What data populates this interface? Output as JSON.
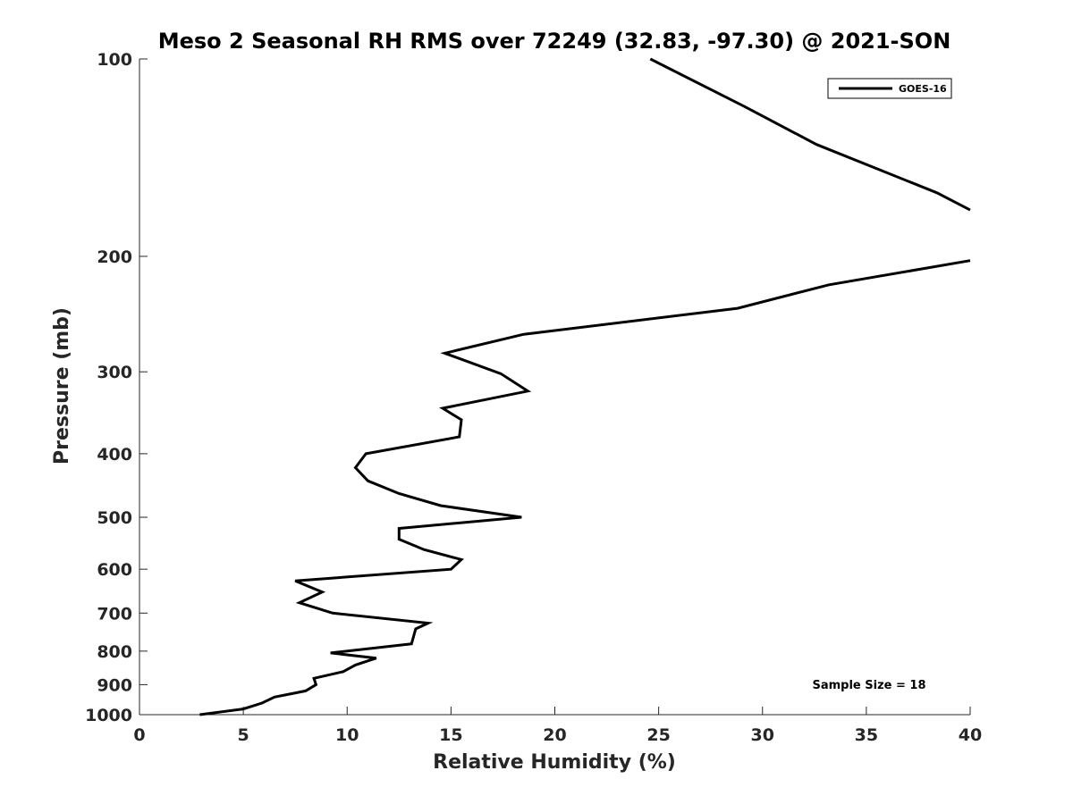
{
  "chart_data": {
    "type": "line",
    "title": "Meso 2 Seasonal RH RMS over 72249 (32.83, -97.30) @ 2021-SON",
    "xlabel": "Relative Humidity (%)",
    "ylabel": "Pressure (mb)",
    "xlim": [
      0,
      40
    ],
    "ylim": [
      1000,
      100
    ],
    "yscale": "log",
    "y_reversed": true,
    "grid": false,
    "legend_position": "top-right",
    "x_ticks": [
      0,
      5,
      10,
      15,
      20,
      25,
      30,
      35,
      40
    ],
    "y_ticks": [
      100,
      200,
      300,
      400,
      500,
      600,
      700,
      800,
      900,
      1000
    ],
    "annotation": "Sample Size = 18",
    "line_color": "#000000",
    "series": [
      {
        "name": "GOES-16",
        "points": [
          [
            24.6,
            100
          ],
          [
            29.1,
            118
          ],
          [
            32.6,
            135
          ],
          [
            38.4,
            160
          ],
          [
            40.0,
            170
          ],
          [
            null,
            null
          ],
          [
            40.0,
            203
          ],
          [
            33.2,
            221
          ],
          [
            28.8,
            240
          ],
          [
            18.5,
            263
          ],
          [
            14.7,
            281
          ],
          [
            17.4,
            302
          ],
          [
            18.7,
            321
          ],
          [
            14.6,
            341
          ],
          [
            15.5,
            355
          ],
          [
            15.4,
            377
          ],
          [
            10.9,
            400
          ],
          [
            10.4,
            420
          ],
          [
            11.0,
            440
          ],
          [
            12.5,
            460
          ],
          [
            14.5,
            480
          ],
          [
            18.4,
            500
          ],
          [
            12.5,
            520
          ],
          [
            12.5,
            540
          ],
          [
            13.7,
            560
          ],
          [
            15.5,
            580
          ],
          [
            15.0,
            600
          ],
          [
            7.5,
            625
          ],
          [
            8.8,
            650
          ],
          [
            7.7,
            675
          ],
          [
            9.3,
            700
          ],
          [
            13.9,
            725
          ],
          [
            13.3,
            740
          ],
          [
            13.1,
            780
          ],
          [
            9.2,
            805
          ],
          [
            11.4,
            820
          ],
          [
            10.4,
            840
          ],
          [
            9.8,
            860
          ],
          [
            8.4,
            880
          ],
          [
            8.5,
            900
          ],
          [
            8.0,
            920
          ],
          [
            6.5,
            940
          ],
          [
            5.9,
            960
          ],
          [
            5.0,
            980
          ],
          [
            2.9,
            1000
          ]
        ]
      }
    ]
  }
}
